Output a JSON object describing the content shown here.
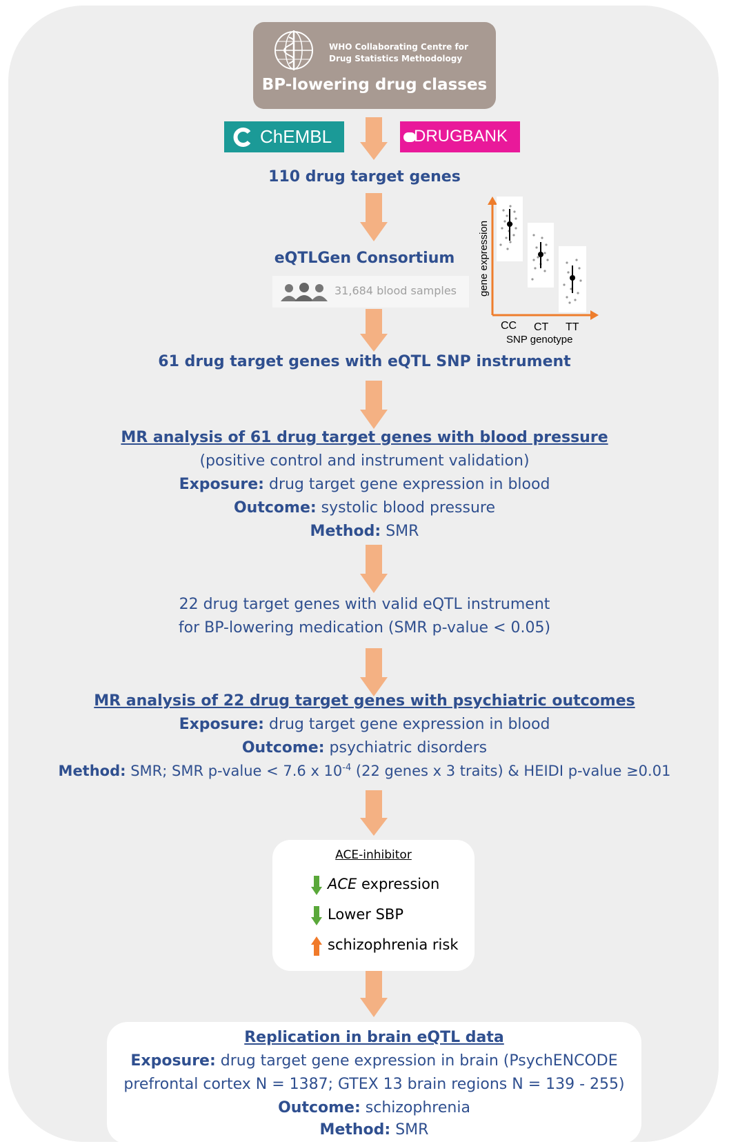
{
  "who_box": {
    "org_line1": "WHO Collaborating Centre for",
    "org_line2": "Drug Statistics Methodology",
    "title": "BP-lowering drug classes"
  },
  "databases": {
    "chembl": "ChEMBL",
    "drugbank": "DRUGBANK"
  },
  "step_gene_count": "110 drug target genes",
  "eqtlgen": {
    "name": "eQTLGen Consortium",
    "samples": "31,684 blood samples"
  },
  "eqtl_plot": {
    "ylabel": "gene expression",
    "xlabel": "SNP genotype",
    "genotypes": [
      "CC",
      "CT",
      "TT"
    ]
  },
  "step_instrument": "61 drug target genes with eQTL SNP instrument",
  "mr_bp": {
    "heading": "MR analysis of 61 drug target genes with blood pressure",
    "subtitle": "(positive control and instrument validation)",
    "exposure_label": "Exposure:",
    "exposure_text": " drug target gene expression in blood",
    "outcome_label": "Outcome:",
    "outcome_text": " systolic blood pressure",
    "method_label": "Method:",
    "method_text": " SMR"
  },
  "valid_instrument": {
    "line1": "22 drug target genes with valid eQTL instrument",
    "line2": "for BP-lowering medication (SMR p-value < 0.05)"
  },
  "mr_psych": {
    "heading": "MR analysis of 22 drug target genes with psychiatric outcomes",
    "exposure_label": "Exposure:",
    "exposure_text": " drug target gene expression in blood",
    "outcome_label": "Outcome:",
    "outcome_text": " psychiatric disorders",
    "method_label": "Method:",
    "method_text_a": " SMR; SMR p-value < 7.6 x 10",
    "method_sup": "-4",
    "method_text_b": " (22 genes x 3 traits) & HEIDI p-value ≥0.01"
  },
  "ace_box": {
    "title": "ACE-inhibitor",
    "row1_italic": "ACE",
    "row1_text": " expression",
    "row2_text": "Lower SBP",
    "row3_text": "schizophrenia risk",
    "down_color": "#5aa83a",
    "up_color": "#f07a2a"
  },
  "replication": {
    "heading": "Replication in brain eQTL data",
    "exposure_label": "Exposure:",
    "exposure_text": " drug target gene expression in brain (PsychENCODE",
    "exposure_line2": "prefrontal cortex N = 1387; GTEX 13 brain regions N = 139 - 255)",
    "outcome_label": "Outcome:",
    "outcome_text": " schizophrenia",
    "method_label": "Method:",
    "method_text": " SMR"
  },
  "colors": {
    "text_blue": "#2f4f8f",
    "arrow_orange": "#f4b183",
    "panel_gray": "#eeeeee",
    "who_brown": "#a89a92"
  }
}
